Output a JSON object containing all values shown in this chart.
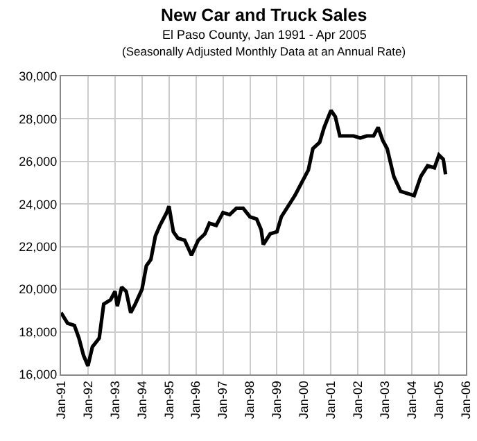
{
  "chart_data": {
    "type": "line",
    "title": "New Car and Truck Sales",
    "subtitle": "El Paso County, Jan 1991 - Apr 2005",
    "annotations": [
      "(Seasonally Adjusted Monthly Data at an Annual Rate)"
    ],
    "x": [
      "1991-01",
      "1991-04",
      "1991-07",
      "1991-09",
      "1991-11",
      "1992-01",
      "1992-03",
      "1992-06",
      "1992-08",
      "1992-11",
      "1993-01",
      "1993-02",
      "1993-04",
      "1993-06",
      "1993-08",
      "1993-10",
      "1994-01",
      "1994-03",
      "1994-05",
      "1994-07",
      "1994-09",
      "1994-12",
      "1995-01",
      "1995-03",
      "1995-05",
      "1995-08",
      "1995-11",
      "1996-02",
      "1996-05",
      "1996-07",
      "1996-10",
      "1997-01",
      "1997-04",
      "1997-07",
      "1997-10",
      "1998-01",
      "1998-04",
      "1998-06",
      "1998-07",
      "1998-10",
      "1999-01",
      "1999-03",
      "1999-06",
      "1999-09",
      "1999-12",
      "2000-03",
      "2000-05",
      "2000-08",
      "2000-10",
      "2001-01",
      "2001-03",
      "2001-05",
      "2001-08",
      "2001-11",
      "2002-02",
      "2002-05",
      "2002-08",
      "2002-10",
      "2002-12",
      "2003-02",
      "2003-05",
      "2003-08",
      "2003-11",
      "2004-02",
      "2004-05",
      "2004-08",
      "2004-11",
      "2005-01",
      "2005-03",
      "2005-04"
    ],
    "series": [
      {
        "color": "#000000",
        "values": [
          18900,
          18400,
          18300,
          17700,
          16900,
          16400,
          17300,
          17700,
          19300,
          19500,
          19900,
          19200,
          20100,
          19900,
          18900,
          19300,
          20000,
          21100,
          21400,
          22500,
          23000,
          23600,
          23900,
          22700,
          22400,
          22300,
          21600,
          22300,
          22600,
          23100,
          23000,
          23600,
          23500,
          23800,
          23800,
          23400,
          23300,
          22800,
          22100,
          22600,
          22700,
          23400,
          23900,
          24400,
          25000,
          25600,
          26600,
          26900,
          27600,
          28400,
          28100,
          27200,
          27200,
          27200,
          27100,
          27200,
          27200,
          27600,
          27000,
          26600,
          25300,
          24600,
          24500,
          24400,
          25300,
          25800,
          25700,
          26300,
          26100,
          25400
        ]
      }
    ],
    "xlim": [
      "1991-01",
      "2006-01"
    ],
    "xticks": [
      {
        "value": "1991-01",
        "label": "Jan-91"
      },
      {
        "value": "1992-01",
        "label": "Jan-92"
      },
      {
        "value": "1993-01",
        "label": "Jan-93"
      },
      {
        "value": "1994-01",
        "label": "Jan-94"
      },
      {
        "value": "1995-01",
        "label": "Jan-95"
      },
      {
        "value": "1996-01",
        "label": "Jan-96"
      },
      {
        "value": "1997-01",
        "label": "Jan-97"
      },
      {
        "value": "1998-01",
        "label": "Jan-98"
      },
      {
        "value": "1999-01",
        "label": "Jan-99"
      },
      {
        "value": "2000-01",
        "label": "Jan-00"
      },
      {
        "value": "2001-01",
        "label": "Jan-01"
      },
      {
        "value": "2002-01",
        "label": "Jan-02"
      },
      {
        "value": "2003-01",
        "label": "Jan-03"
      },
      {
        "value": "2004-01",
        "label": "Jan-04"
      },
      {
        "value": "2005-01",
        "label": "Jan-05"
      },
      {
        "value": "2006-01",
        "label": "Jan-06"
      }
    ],
    "ylim": [
      16000,
      30000
    ],
    "yticks": [
      {
        "value": 16000,
        "label": "16,000"
      },
      {
        "value": 18000,
        "label": "18,000"
      },
      {
        "value": 20000,
        "label": "20,000"
      },
      {
        "value": 22000,
        "label": "22,000"
      },
      {
        "value": 24000,
        "label": "24,000"
      },
      {
        "value": 26000,
        "label": "26,000"
      },
      {
        "value": 28000,
        "label": "28,000"
      },
      {
        "value": 30000,
        "label": "30,000"
      }
    ],
    "grid": true,
    "marker": "none",
    "line_style": "solid"
  }
}
